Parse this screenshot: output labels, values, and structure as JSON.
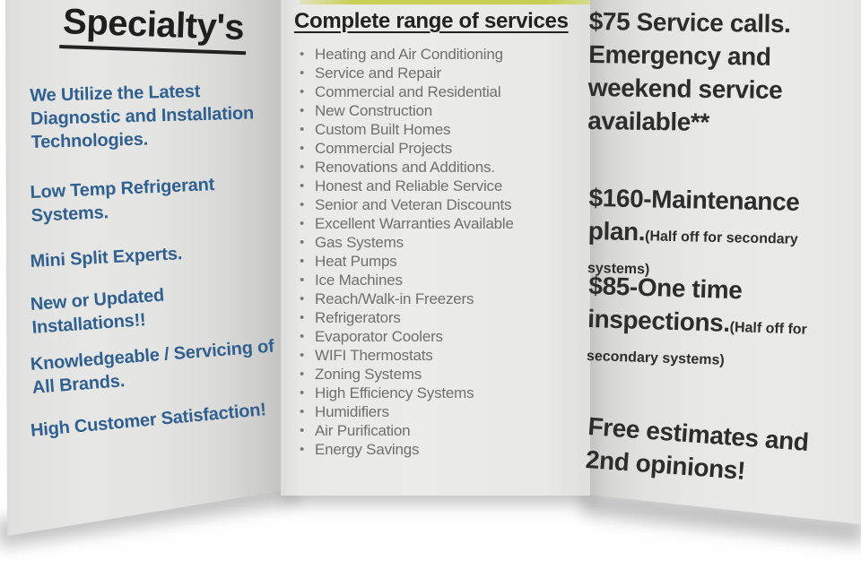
{
  "brochure": {
    "left_panel": {
      "title": "Specialty's",
      "title_color": "#1f1f1f",
      "text_color": "#30608f",
      "items": [
        {
          "lines": [
            "We Utilize the Latest",
            "Diagnostic and Installation",
            "Technologies."
          ]
        },
        {
          "lines": [
            "Low Temp Refrigerant",
            "Systems."
          ]
        },
        {
          "lines": [
            "Mini Split Experts."
          ]
        },
        {
          "lines": [
            "New or Updated",
            "Installations!!"
          ]
        },
        {
          "lines": [
            "Knowledgeable / Servicing of",
            "All Brands."
          ]
        },
        {
          "lines": [
            "High Customer Satisfaction!"
          ]
        }
      ]
    },
    "middle_panel": {
      "title": "Complete range of services",
      "text_color": "#6f6f6f",
      "accent_strip_color": "#c7cf52",
      "services": [
        "Heating and Air Conditioning",
        "Service and Repair",
        "Commercial and Residential",
        "New Construction",
        "Custom Built Homes",
        "Commercial Projects",
        "Renovations and Additions.",
        "Honest and Reliable Service",
        "Senior and Veteran Discounts",
        "Excellent Warranties Available",
        "Gas Systems",
        "Heat Pumps",
        "Ice Machines",
        "Reach/Walk-in Freezers",
        "Refrigerators",
        "Evaporator Coolers",
        "WIFI Thermostats",
        "Zoning Systems",
        "High Efficiency Systems",
        "Humidifiers",
        "Air Purification",
        "Energy Savings"
      ]
    },
    "right_panel": {
      "text_color": "#2d2d2d",
      "offers": {
        "service_calls": "$75 Service calls. Emergency and weekend service available**",
        "maintenance_main": "$160-Maintenance plan.",
        "maintenance_note": "(Half off for secondary systems)",
        "inspection_main": "$85-One time inspections.",
        "inspection_note": "(Half off for secondary systems)",
        "free_estimates": "Free estimates and 2nd opinions!"
      }
    }
  }
}
